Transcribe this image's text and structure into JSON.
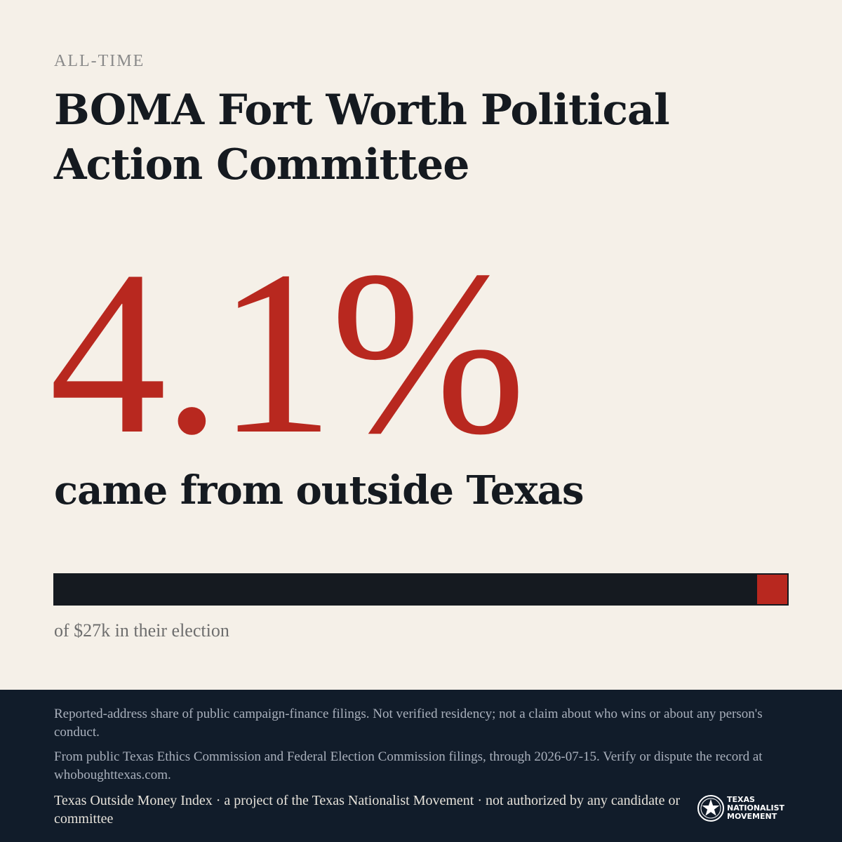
{
  "header": {
    "kicker": "ALL-TIME",
    "title": "BOMA Fort Worth Political Action Committee"
  },
  "stat": {
    "value": "4.1%",
    "share": 0.041,
    "subhead": "came from outside Texas"
  },
  "bar": {
    "caption": "of $27k in their election",
    "base_color": "#151a20",
    "fill_color": "#b8281f"
  },
  "footer": {
    "disclaimer": "Reported-address share of public campaign-finance filings. Not verified residency; not a claim about who wins or about any person's conduct.",
    "source": "From public Texas Ethics Commission and Federal Election Commission filings, through 2026-07-15. Verify or dispute the record at whoboughttexas.com.",
    "credit": "Texas Outside Money Index · a project of the Texas Nationalist Movement · not authorized by any candidate or committee"
  },
  "logo": {
    "icon": "star-seal-icon",
    "line1": "TEXAS",
    "line2": "NATIONALIST",
    "line3": "MOVEMENT"
  },
  "colors": {
    "accent": "#b8281f",
    "ink": "#151a20",
    "background": "#f5f0e8",
    "footer_bg": "#111c2a"
  }
}
